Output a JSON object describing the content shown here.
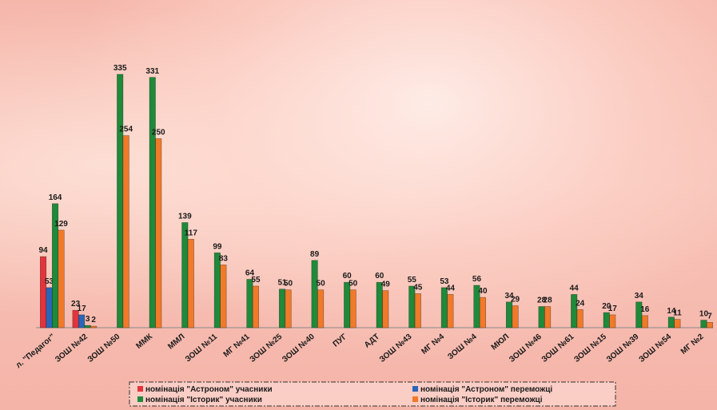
{
  "chart_data": {
    "type": "bar",
    "categories": [
      "л. \"Педагог\"",
      "ЗОШ №42",
      "ЗОШ №50",
      "ММК",
      "ММЛ",
      "ЗОШ №11",
      "МГ №41",
      "ЗОШ №25",
      "ЗОШ №40",
      "ПУГ",
      "АДТ",
      "ЗОШ №43",
      "МГ №4",
      "ЗОШ №4",
      "МЮЛ",
      "ЗОШ №46",
      "ЗОШ №61",
      "ЗОШ №15",
      "ЗОШ №39",
      "ЗОШ №54",
      "МГ №2"
    ],
    "series": [
      {
        "name": "номінація \"Астроном\" учасники",
        "color": "#e2343c",
        "values": [
          94,
          23,
          null,
          null,
          null,
          null,
          null,
          null,
          null,
          null,
          null,
          null,
          null,
          null,
          null,
          null,
          null,
          null,
          null,
          null,
          null
        ]
      },
      {
        "name": "номінація \"Астроном\" переможці",
        "color": "#2a66b8",
        "values": [
          53,
          17,
          null,
          null,
          null,
          null,
          null,
          null,
          null,
          null,
          null,
          null,
          null,
          null,
          null,
          null,
          null,
          null,
          null,
          null,
          null
        ]
      },
      {
        "name": "номінація \"Історик\" учасники",
        "color": "#1e8a3a",
        "values": [
          164,
          3,
          335,
          331,
          139,
          99,
          64,
          51,
          89,
          60,
          60,
          55,
          53,
          56,
          34,
          28,
          44,
          20,
          34,
          14,
          10
        ]
      },
      {
        "name": "номінація \"Історик\" переможці",
        "color": "#f07a2a",
        "values": [
          129,
          2,
          254,
          250,
          117,
          83,
          55,
          50,
          50,
          50,
          49,
          45,
          44,
          40,
          29,
          28,
          24,
          17,
          16,
          11,
          7
        ]
      }
    ],
    "legend": "bottom"
  }
}
